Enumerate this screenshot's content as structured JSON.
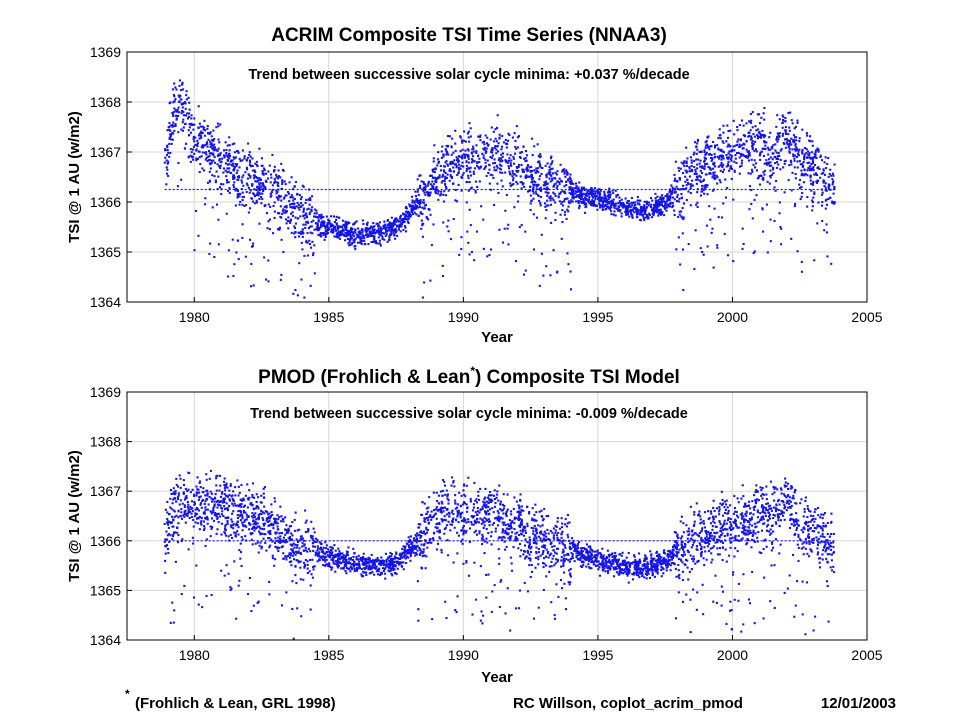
{
  "chart_data": [
    {
      "type": "scatter",
      "title": "ACRIM Composite TSI Time Series (NNAA3)",
      "annotation": "Trend between successive solar cycle minima: +0.037 %/decade",
      "xlabel": "Year",
      "ylabel": "TSI @ 1 AU (w/m2)",
      "xlim": [
        1977.5,
        2005
      ],
      "ylim": [
        1364,
        1369
      ],
      "xticks": [
        1980,
        1985,
        1990,
        1995,
        2000,
        2005
      ],
      "yticks": [
        1364,
        1365,
        1366,
        1367,
        1368,
        1369
      ],
      "grid": true,
      "color": "#1414e6",
      "reference_level": 1366.25,
      "reference_range": [
        1978.9,
        2003.8
      ],
      "series": [
        {
          "x": [
            1978.9,
            1979.3,
            1979.6,
            1980.0,
            1980.5,
            1981.0,
            1981.5,
            1982.0,
            1982.5,
            1983.0,
            1983.5,
            1984.0,
            1984.5,
            1985.0,
            1985.5,
            1986.0,
            1986.5,
            1987.0,
            1987.5,
            1988.0,
            1988.5,
            1989.0,
            1989.5,
            1990.0,
            1990.5,
            1991.0,
            1991.5,
            1992.0,
            1992.5,
            1993.0,
            1993.5,
            1994.0,
            1994.5,
            1995.0,
            1995.5,
            1996.0,
            1996.5,
            1997.0,
            1997.5,
            1998.0,
            1998.5,
            1999.0,
            1999.5,
            2000.0,
            2000.5,
            2001.0,
            2001.5,
            2002.0,
            2002.5,
            2003.0,
            2003.5,
            2003.8
          ],
          "y": [
            1366.6,
            1368.0,
            1367.8,
            1367.2,
            1367.0,
            1366.8,
            1366.6,
            1366.5,
            1366.3,
            1366.2,
            1366.0,
            1365.8,
            1365.6,
            1365.5,
            1365.4,
            1365.35,
            1365.35,
            1365.4,
            1365.5,
            1365.8,
            1366.1,
            1366.5,
            1366.8,
            1366.9,
            1366.9,
            1367.0,
            1366.9,
            1366.8,
            1366.5,
            1366.4,
            1366.3,
            1366.2,
            1366.1,
            1366.05,
            1366.0,
            1365.9,
            1365.85,
            1365.85,
            1366.0,
            1366.2,
            1366.5,
            1366.7,
            1366.9,
            1367.0,
            1367.1,
            1367.2,
            1366.9,
            1367.3,
            1366.8,
            1366.7,
            1366.4,
            1366.3
          ]
        }
      ]
    },
    {
      "type": "scatter",
      "title": "PMOD (Frohlich & Lean",
      "title_mark": "*",
      "title_end": ") Composite TSI Model",
      "annotation": "Trend between successive solar cycle minima: -0.009 %/decade",
      "xlabel": "Year",
      "ylabel": "TSI @ 1 AU (w/m2)",
      "xlim": [
        1977.5,
        2005
      ],
      "ylim": [
        1364,
        1369
      ],
      "xticks": [
        1980,
        1985,
        1990,
        1995,
        2000,
        2005
      ],
      "yticks": [
        1364,
        1365,
        1366,
        1367,
        1368,
        1369
      ],
      "grid": true,
      "color": "#1414e6",
      "reference_level": 1366.0,
      "reference_range": [
        1978.9,
        2003.8
      ],
      "series": [
        {
          "x": [
            1978.9,
            1979.3,
            1979.6,
            1980.0,
            1980.5,
            1981.0,
            1981.5,
            1982.0,
            1982.5,
            1983.0,
            1983.5,
            1984.0,
            1984.5,
            1985.0,
            1985.5,
            1986.0,
            1986.5,
            1987.0,
            1987.5,
            1988.0,
            1988.5,
            1989.0,
            1989.5,
            1990.0,
            1990.5,
            1991.0,
            1991.5,
            1992.0,
            1992.5,
            1993.0,
            1993.5,
            1994.0,
            1994.5,
            1995.0,
            1995.5,
            1996.0,
            1996.5,
            1997.0,
            1997.5,
            1998.0,
            1998.5,
            1999.0,
            1999.5,
            2000.0,
            2000.5,
            2001.0,
            2001.5,
            2002.0,
            2002.5,
            2003.0,
            2003.5,
            2003.8
          ],
          "y": [
            1366.0,
            1366.6,
            1366.8,
            1366.8,
            1366.7,
            1366.7,
            1366.6,
            1366.6,
            1366.4,
            1366.2,
            1366.0,
            1365.9,
            1365.8,
            1365.7,
            1365.6,
            1365.55,
            1365.5,
            1365.5,
            1365.55,
            1365.8,
            1366.1,
            1366.5,
            1366.6,
            1366.6,
            1366.5,
            1366.5,
            1366.4,
            1366.3,
            1366.1,
            1366.0,
            1365.9,
            1365.8,
            1365.7,
            1365.6,
            1365.55,
            1365.5,
            1365.45,
            1365.5,
            1365.6,
            1365.8,
            1366.0,
            1366.1,
            1366.2,
            1366.3,
            1366.4,
            1366.5,
            1366.5,
            1366.8,
            1366.3,
            1366.2,
            1366.0,
            1365.9
          ]
        }
      ]
    }
  ],
  "footer": {
    "footnote_mark": "*",
    "footnote": "(Frohlich & Lean, GRL 1998)",
    "credit": "RC Willson, coplot_acrim_pmod",
    "date": "12/01/2003"
  }
}
